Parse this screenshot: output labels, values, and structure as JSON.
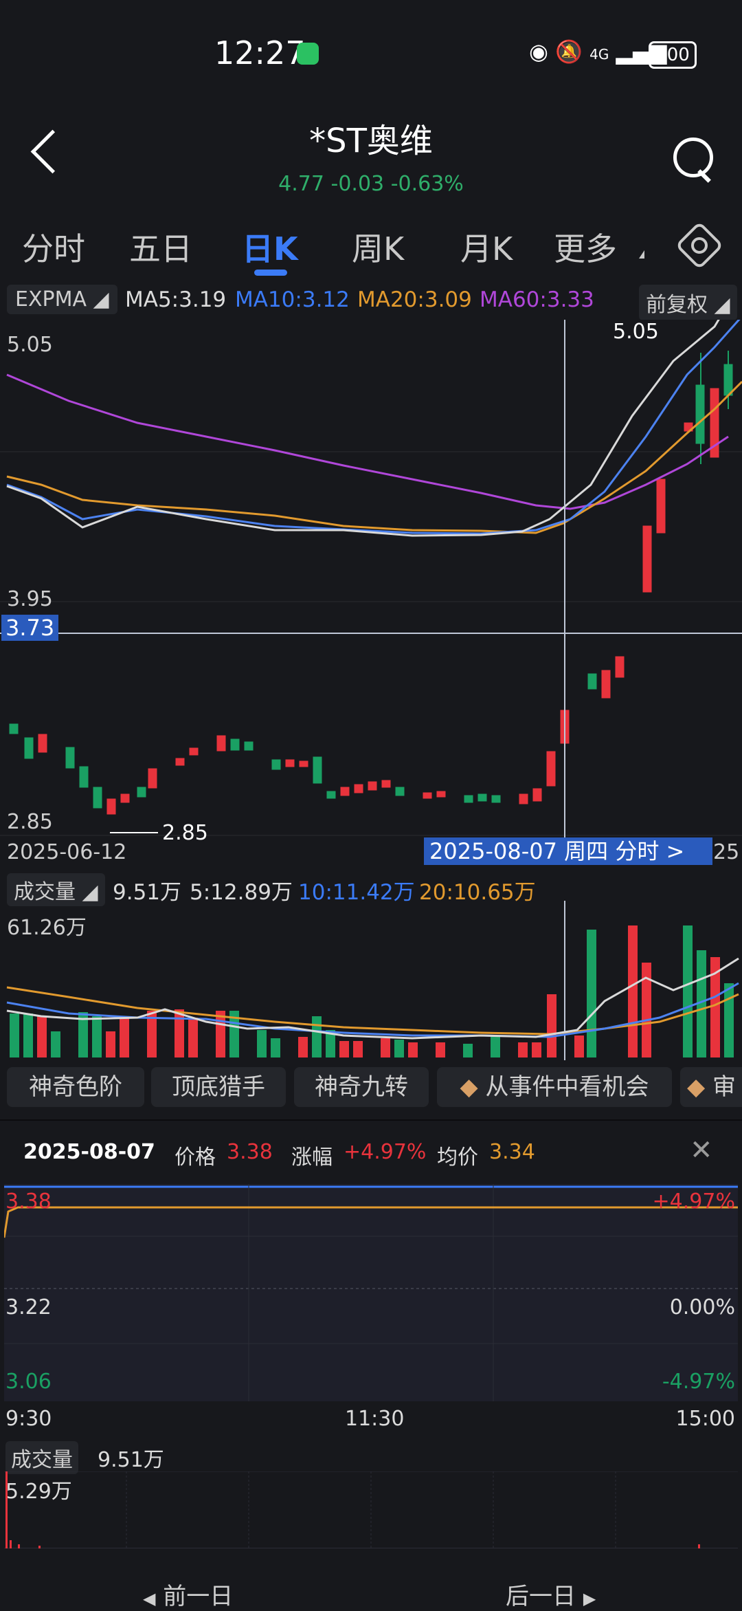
{
  "status_bar": {
    "time": "12:27",
    "network": "4G",
    "battery": "100"
  },
  "header": {
    "title": "*ST奥维",
    "price": "4.77",
    "change": "-0.03",
    "change_pct": "-0.63%"
  },
  "tabs": [
    {
      "label": "分时"
    },
    {
      "label": "五日"
    },
    {
      "label": "日K",
      "active": true
    },
    {
      "label": "周K"
    },
    {
      "label": "月K"
    },
    {
      "label": "更多"
    }
  ],
  "indicator_bar": {
    "type_button": "EXPMA",
    "ma5": "MA5:3.19",
    "ma10": "MA10:3.12",
    "ma20": "MA20:3.09",
    "ma60": "MA60:3.33",
    "adjust_button": "前复权"
  },
  "kline": {
    "y_labels": {
      "top": "5.05",
      "mid": "3.95",
      "bottom": "2.85"
    },
    "crosshair_price": "3.73",
    "high_marker": "5.05",
    "low_marker": "2.85",
    "start_date": "2025-06-12",
    "selected_date": "2025-08-07 周四 分时 >",
    "end_date_tail": "25"
  },
  "volume": {
    "label_button": "成交量",
    "value": "9.51万",
    "ma5": "5:12.89万",
    "ma10": "10:11.42万",
    "ma20": "20:10.65万",
    "max_label": "61.26万"
  },
  "tools": [
    "神奇色阶",
    "顶底猎手",
    "神奇九转",
    "从事件中看机会",
    "审"
  ],
  "detail": {
    "date": "2025-08-07",
    "price_label": "价格",
    "price": "3.38",
    "change_label": "涨幅",
    "change": "+4.97%",
    "avg_label": "均价",
    "avg": "3.34",
    "y_top": "3.38",
    "y_mid": "3.22",
    "y_bottom": "3.06",
    "pct_top": "+4.97%",
    "pct_mid": "0.00%",
    "pct_bottom": "-4.97%",
    "t_start": "9:30",
    "t_mid": "11:30",
    "t_end": "15:00",
    "vol_label": "成交量",
    "vol_value": "9.51万",
    "vol_max": "5.29万"
  },
  "nav": {
    "prev": "前一日",
    "next": "后一日"
  },
  "colors": {
    "up": "#e8333c",
    "down": "#1aa063",
    "accent": "#3b7bf7",
    "ma20": "#e29a2e",
    "ma60": "#b047d9"
  }
}
